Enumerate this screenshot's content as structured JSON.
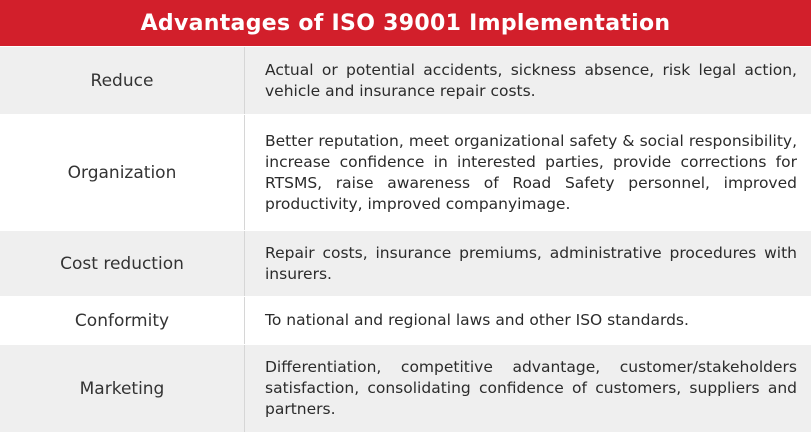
{
  "title": "Advantages of ISO 39001 Implementation",
  "rows": [
    {
      "category": "Reduce",
      "description": "Actual or potential accidents, sickness absence, risk legal action, vehicle and insurance repair costs."
    },
    {
      "category": "Organization",
      "description": "Better reputation, meet organizational safety & social responsibility, increase confidence in interested parties, provide corrections for RTSMS, raise awareness of Road Safety personnel, improved productivity, improved companyimage."
    },
    {
      "category": "Cost reduction",
      "description": "Repair costs, insurance premiums, administrative procedures with insurers."
    },
    {
      "category": "Conformity",
      "description": "To national and regional laws and other ISO standards."
    },
    {
      "category": "Marketing",
      "description": "Differentiation, competitive advantage, customer/stakeholders satisfaction, consolidating confidence of customers, suppliers and partners."
    }
  ],
  "colors": {
    "header_bg": "#d21f2b",
    "row_gray": "#efefef",
    "row_white": "#ffffff"
  }
}
